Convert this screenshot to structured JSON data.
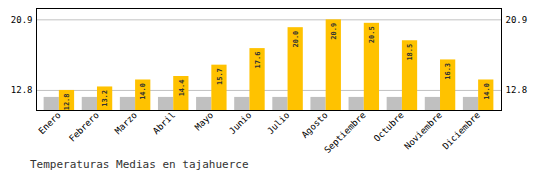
{
  "chart_data": {
    "type": "bar",
    "title": "Temperaturas Medias en tajahuerce",
    "categories": [
      "Enero",
      "Febrero",
      "Marzo",
      "Abril",
      "Mayo",
      "Junio",
      "Julio",
      "Agosto",
      "Septiembre",
      "Octubre",
      "Noviembre",
      "Diciembre"
    ],
    "series": [
      {
        "color": "#C0C0C0",
        "values": [
          12.0,
          12.0,
          12.0,
          12.0,
          12.0,
          12.0,
          12.0,
          12.0,
          12.0,
          12.0,
          12.0,
          12.0
        ]
      },
      {
        "color": "#FFC200",
        "values": [
          12.8,
          13.2,
          14.0,
          14.4,
          15.7,
          17.6,
          20.0,
          20.9,
          20.5,
          18.5,
          16.3,
          14.0
        ],
        "value_labels": [
          "12.8",
          "13.2",
          "14.0",
          "14.4",
          "15.7",
          "17.6",
          "20.0",
          "20.9",
          "20.5",
          "18.5",
          "16.3",
          "14.0"
        ],
        "data_labels": true
      }
    ],
    "ylim": [
      10.5,
      22.2
    ],
    "yticks": [
      12.8,
      20.9
    ],
    "y2lim": [
      10.5,
      22.2
    ],
    "y2ticks": [
      12.8,
      20.9
    ],
    "grid": true
  }
}
